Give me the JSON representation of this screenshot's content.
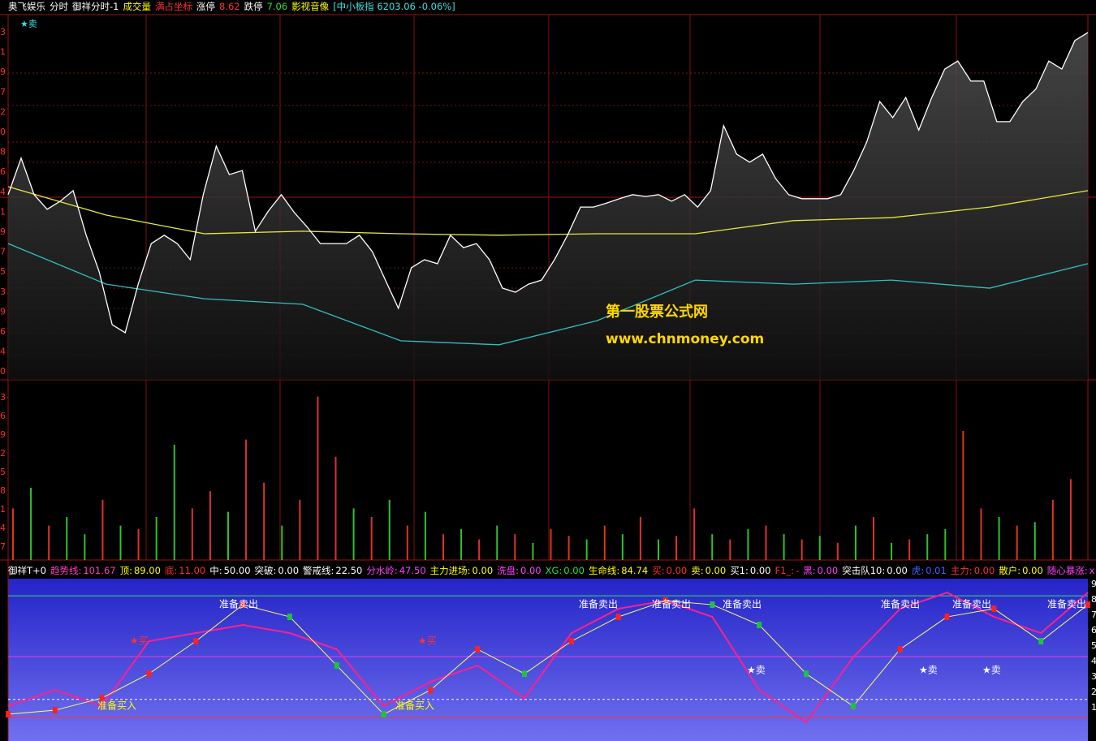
{
  "header": {
    "items": [
      {
        "text": "奥飞娱乐",
        "color": "#ffffff"
      },
      {
        "text": "分时",
        "color": "#ffffff"
      },
      {
        "text": "御祥分时-1",
        "color": "#ffffff"
      },
      {
        "text": "成交量",
        "color": "#ffff00"
      },
      {
        "text": "满占坐标",
        "color": "#ff3030"
      },
      {
        "text": "涨停",
        "color": "#ffffff"
      },
      {
        "text": "8.62",
        "color": "#ff3030"
      },
      {
        "text": "跌停",
        "color": "#ffffff"
      },
      {
        "text": "7.06",
        "color": "#30e030"
      },
      {
        "text": "影视音像",
        "color": "#ffff00"
      },
      {
        "text": "[中小板指 6203.06 -0.06%]",
        "color": "#40e0e0"
      }
    ]
  },
  "price_axis_labels": [
    "3",
    "1",
    "9",
    "7",
    "2",
    "0",
    "8",
    "6",
    "4",
    "1",
    "9",
    "7",
    "5",
    "3",
    "9",
    "6",
    "4",
    "0"
  ],
  "sell_label": "★卖",
  "price_chart": {
    "ylim": [
      0,
      100
    ],
    "price_color": "#ffffff",
    "avg_color": "#e8e840",
    "low_color": "#30c0c0",
    "price": [
      50.7,
      60.7,
      50.7,
      46.7,
      48.9,
      51.8,
      39.6,
      29.6,
      15.1,
      12.9,
      26.2,
      37.3,
      39.6,
      37.3,
      32.9,
      50.7,
      64,
      56.2,
      57.3,
      40.7,
      46.2,
      50.7,
      45.8,
      41.8,
      37.3,
      37.3,
      37.3,
      39.6,
      35.1,
      27.3,
      19.6,
      30.7,
      32.9,
      31.8,
      39.6,
      36.2,
      37.3,
      32.9,
      25.1,
      24,
      26.2,
      27.3,
      32.9,
      39.6,
      47.3,
      47.3,
      48.4,
      49.6,
      50.7,
      50.2,
      50.7,
      48.9,
      50.7,
      47.3,
      51.8,
      69.6,
      61.8,
      59.6,
      61.8,
      55.1,
      50.7,
      49.6,
      49.6,
      49.6,
      50.7,
      57.3,
      65.1,
      76.2,
      71.8,
      77.3,
      68.4,
      77.3,
      85.1,
      87.3,
      81.8,
      81.8,
      70.7,
      70.7,
      76.2,
      79.6,
      87.3,
      85.1,
      92.9,
      95.1
    ],
    "avg": [
      52.9,
      45.1,
      40,
      40.7,
      40,
      39.6,
      40,
      40,
      43.6,
      44.4,
      47.3,
      51.8
    ],
    "low_line": [
      37.3,
      26.2,
      22.2,
      20.7,
      10.7,
      9.6,
      16.2,
      27.3,
      26.2,
      27.3,
      25.1,
      31.8
    ]
  },
  "watermark": {
    "title": "第一股票公式网",
    "url": "www.chnmoney.com"
  },
  "volume": {
    "ylim": [
      0,
      100
    ],
    "values": [
      30,
      42,
      20,
      25,
      15,
      35,
      20,
      18,
      25,
      67,
      30,
      40,
      28,
      70,
      45,
      20,
      35,
      95,
      60,
      30,
      25,
      35,
      20,
      28,
      15,
      18,
      12,
      20,
      15,
      10,
      18,
      14,
      12,
      20,
      15,
      25,
      12,
      14,
      30,
      15,
      12,
      18,
      20,
      15,
      12,
      14,
      10,
      20,
      25,
      10,
      12,
      15,
      18,
      75,
      30,
      25,
      20,
      22,
      35,
      47
    ],
    "colors": [
      "#e03030",
      "#30c030",
      "#e03030",
      "#30c030",
      "#30c030",
      "#e03030",
      "#30c030",
      "#e03030",
      "#30c030",
      "#30c030",
      "#e03030",
      "#e03030",
      "#30c030",
      "#e03030",
      "#e03030",
      "#30c030",
      "#e03030",
      "#e03030",
      "#e03030",
      "#30c030",
      "#e03030",
      "#30c030",
      "#e03030",
      "#30c030",
      "#e03030",
      "#30c030",
      "#e03030",
      "#30c030",
      "#e03030",
      "#30c030",
      "#e03030",
      "#e03030",
      "#30c030",
      "#e03030",
      "#30c030",
      "#e03030",
      "#30c030",
      "#e03030",
      "#e03030",
      "#30c030",
      "#e03030",
      "#30c030",
      "#e03030",
      "#30c030",
      "#e03030",
      "#30c030",
      "#e03030",
      "#30c030",
      "#e03030",
      "#30c030",
      "#e03030",
      "#30c030",
      "#30c030",
      "#e03030",
      "#e03030",
      "#30c030",
      "#e03030",
      "#30c030",
      "#e03030",
      "#e03030"
    ],
    "axis_labels": [
      "3",
      "6",
      "9",
      "2",
      "5",
      "8",
      "1",
      "4",
      "7"
    ]
  },
  "indicator": {
    "title": "御祥T+0",
    "ylim": [
      0,
      100
    ],
    "items": [
      {
        "name": "趋势线:",
        "label": "101.67",
        "color": "#ff40c0"
      },
      {
        "name": "顶:",
        "label": "89.00",
        "value": 89,
        "color": "#ffff00",
        "line": "#30e060"
      },
      {
        "name": "底:",
        "label": "11.00",
        "value": 11,
        "color": "#ff3030",
        "line": "#ff3030"
      },
      {
        "name": "中:",
        "label": "50.00",
        "value": 50,
        "color": "#ffffff",
        "line": "#e040e0"
      },
      {
        "name": "突破:",
        "label": "0.00",
        "color": "#ffffff"
      },
      {
        "name": "警戒线:",
        "label": "22.50",
        "value": 22.5,
        "color": "#ffffff",
        "line": "#ffffff"
      },
      {
        "name": "分水岭:",
        "label": "47.50",
        "color": "#ff40ff"
      },
      {
        "name": "主力进场:",
        "label": "0.00",
        "color": "#ffff00"
      },
      {
        "name": "洗盘:",
        "label": "0.00",
        "color": "#ff40ff"
      },
      {
        "name": "XG:",
        "label": "0.00",
        "color": "#30e030"
      },
      {
        "name": "生命线:",
        "label": "84.74",
        "color": "#ffff00"
      },
      {
        "name": "买:",
        "label": "0.00",
        "color": "#ff3030"
      },
      {
        "name": "卖:",
        "label": "0.00",
        "color": "#ffff00"
      },
      {
        "name": "买1:",
        "label": "0.00",
        "color": "#ffffff"
      },
      {
        "name": "F1_:",
        "label": "-",
        "color": "#ff3030"
      },
      {
        "name": "黑:",
        "label": "0.00",
        "color": "#ff40ff"
      },
      {
        "name": "突击队10:",
        "label": "0.00",
        "color": "#ffffff"
      },
      {
        "name": "虎:",
        "label": "0.01",
        "color": "#4060ff"
      },
      {
        "name": "主力:",
        "label": "0.00",
        "color": "#ff3030"
      },
      {
        "name": "散户:",
        "label": "0.00",
        "color": "#ffff00"
      },
      {
        "name": "随心暴涨:",
        "label": "x",
        "color": "#ff40ff"
      }
    ],
    "pink": [
      18.2,
      28.6,
      18.2,
      59.9,
      65.1,
      70.3,
      65.1,
      54.7,
      18.2,
      33.9,
      44.3,
      23.4,
      65.1,
      80.7,
      85.9,
      75.5,
      28.6,
      7.8,
      49.5,
      80.7,
      91.1,
      75.5,
      65.1,
      91.1
    ],
    "trend": [
      13,
      15.6,
      23.4,
      39,
      59.9,
      83.3,
      75.5,
      44.3,
      13,
      28.6,
      54.7,
      39,
      59.9,
      75.5,
      85.9,
      83.3,
      70.3,
      39,
      18.2,
      54.7,
      75.5,
      80.7,
      59.9,
      83.3
    ],
    "axis_labels": [
      "9",
      "8",
      "7",
      "6",
      "5",
      "4",
      "3",
      "2",
      "1"
    ],
    "annotations": [
      {
        "text": "准备卖出",
        "color": "#ffffff"
      },
      {
        "text": "准备卖出",
        "color": "#ffffff"
      },
      {
        "text": "准备卖出",
        "color": "#ffffff"
      },
      {
        "text": "准备卖出",
        "color": "#ffffff"
      },
      {
        "text": "准备卖出",
        "color": "#ffffff"
      },
      {
        "text": "准备卖出",
        "color": "#ffffff"
      },
      {
        "text": "准备卖出",
        "color": "#ffffff"
      },
      {
        "text": "准备买入",
        "color": "#ffff00"
      },
      {
        "text": "准备买入",
        "color": "#ffff00"
      },
      {
        "text": "★卖",
        "color": "#ffffff"
      },
      {
        "text": "★卖",
        "color": "#ffffff"
      },
      {
        "text": "★卖",
        "color": "#ffffff"
      },
      {
        "text": "★买",
        "color": "#ff3030"
      },
      {
        "text": "★买",
        "color": "#ff3030"
      }
    ]
  }
}
